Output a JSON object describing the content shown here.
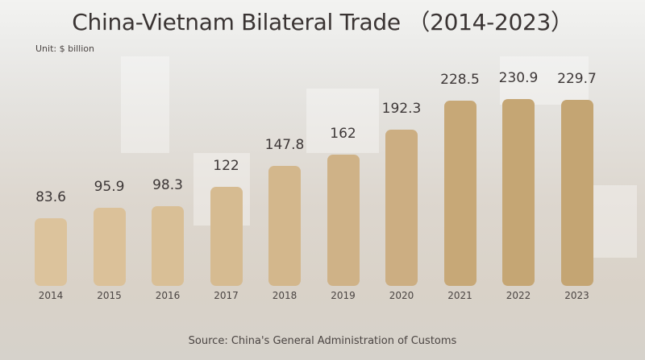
{
  "chart_data": {
    "type": "bar",
    "title": "China-Vietnam Bilateral Trade （2014-2023）",
    "unit": "Unit: $ billion",
    "source": "Source: China's General Administration of Customs",
    "xlabel": "",
    "ylabel": "$ billion",
    "categories": [
      "2014",
      "2015",
      "2016",
      "2017",
      "2018",
      "2019",
      "2020",
      "2021",
      "2022",
      "2023"
    ],
    "values": [
      83.6,
      95.9,
      98.3,
      122,
      147.8,
      162,
      192.3,
      228.5,
      230.9,
      229.7
    ],
    "value_labels": [
      "83.6",
      "95.9",
      "98.3",
      "122",
      "147.8",
      "162",
      "192.3",
      "228.5",
      "230.9",
      "229.7"
    ],
    "bar_colors": [
      "#dcc39c",
      "#dbc199",
      "#d9bf96",
      "#d6bb91",
      "#d3b78c",
      "#cfb287",
      "#ccae82",
      "#c7a877",
      "#c5a674",
      "#c4a573"
    ],
    "grid": false,
    "legend": null
  }
}
